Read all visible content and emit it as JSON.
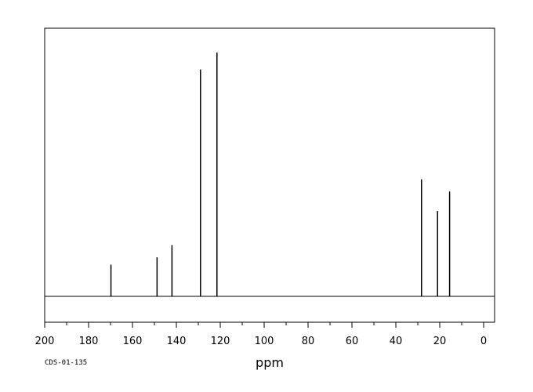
{
  "chart_data": {
    "type": "line",
    "title": "",
    "xlabel": "ppm",
    "ylabel": "",
    "xlim": [
      200,
      -5
    ],
    "x_ticks": [
      200,
      180,
      160,
      140,
      120,
      100,
      80,
      60,
      40,
      20,
      0
    ],
    "x_ticks_minor_step": 10,
    "reversed_x": true,
    "grid": false,
    "series": [
      {
        "peaks": [
          {
            "ppm": 169.8,
            "height": 0.13
          },
          {
            "ppm": 148.8,
            "height": 0.16
          },
          {
            "ppm": 142.0,
            "height": 0.21
          },
          {
            "ppm": 129.0,
            "height": 0.93
          },
          {
            "ppm": 121.5,
            "height": 1.0
          },
          {
            "ppm": 28.3,
            "height": 0.48
          },
          {
            "ppm": 21.0,
            "height": 0.35
          },
          {
            "ppm": 15.5,
            "height": 0.43
          }
        ]
      }
    ]
  },
  "footer": {
    "code": "CDS-01-135"
  }
}
